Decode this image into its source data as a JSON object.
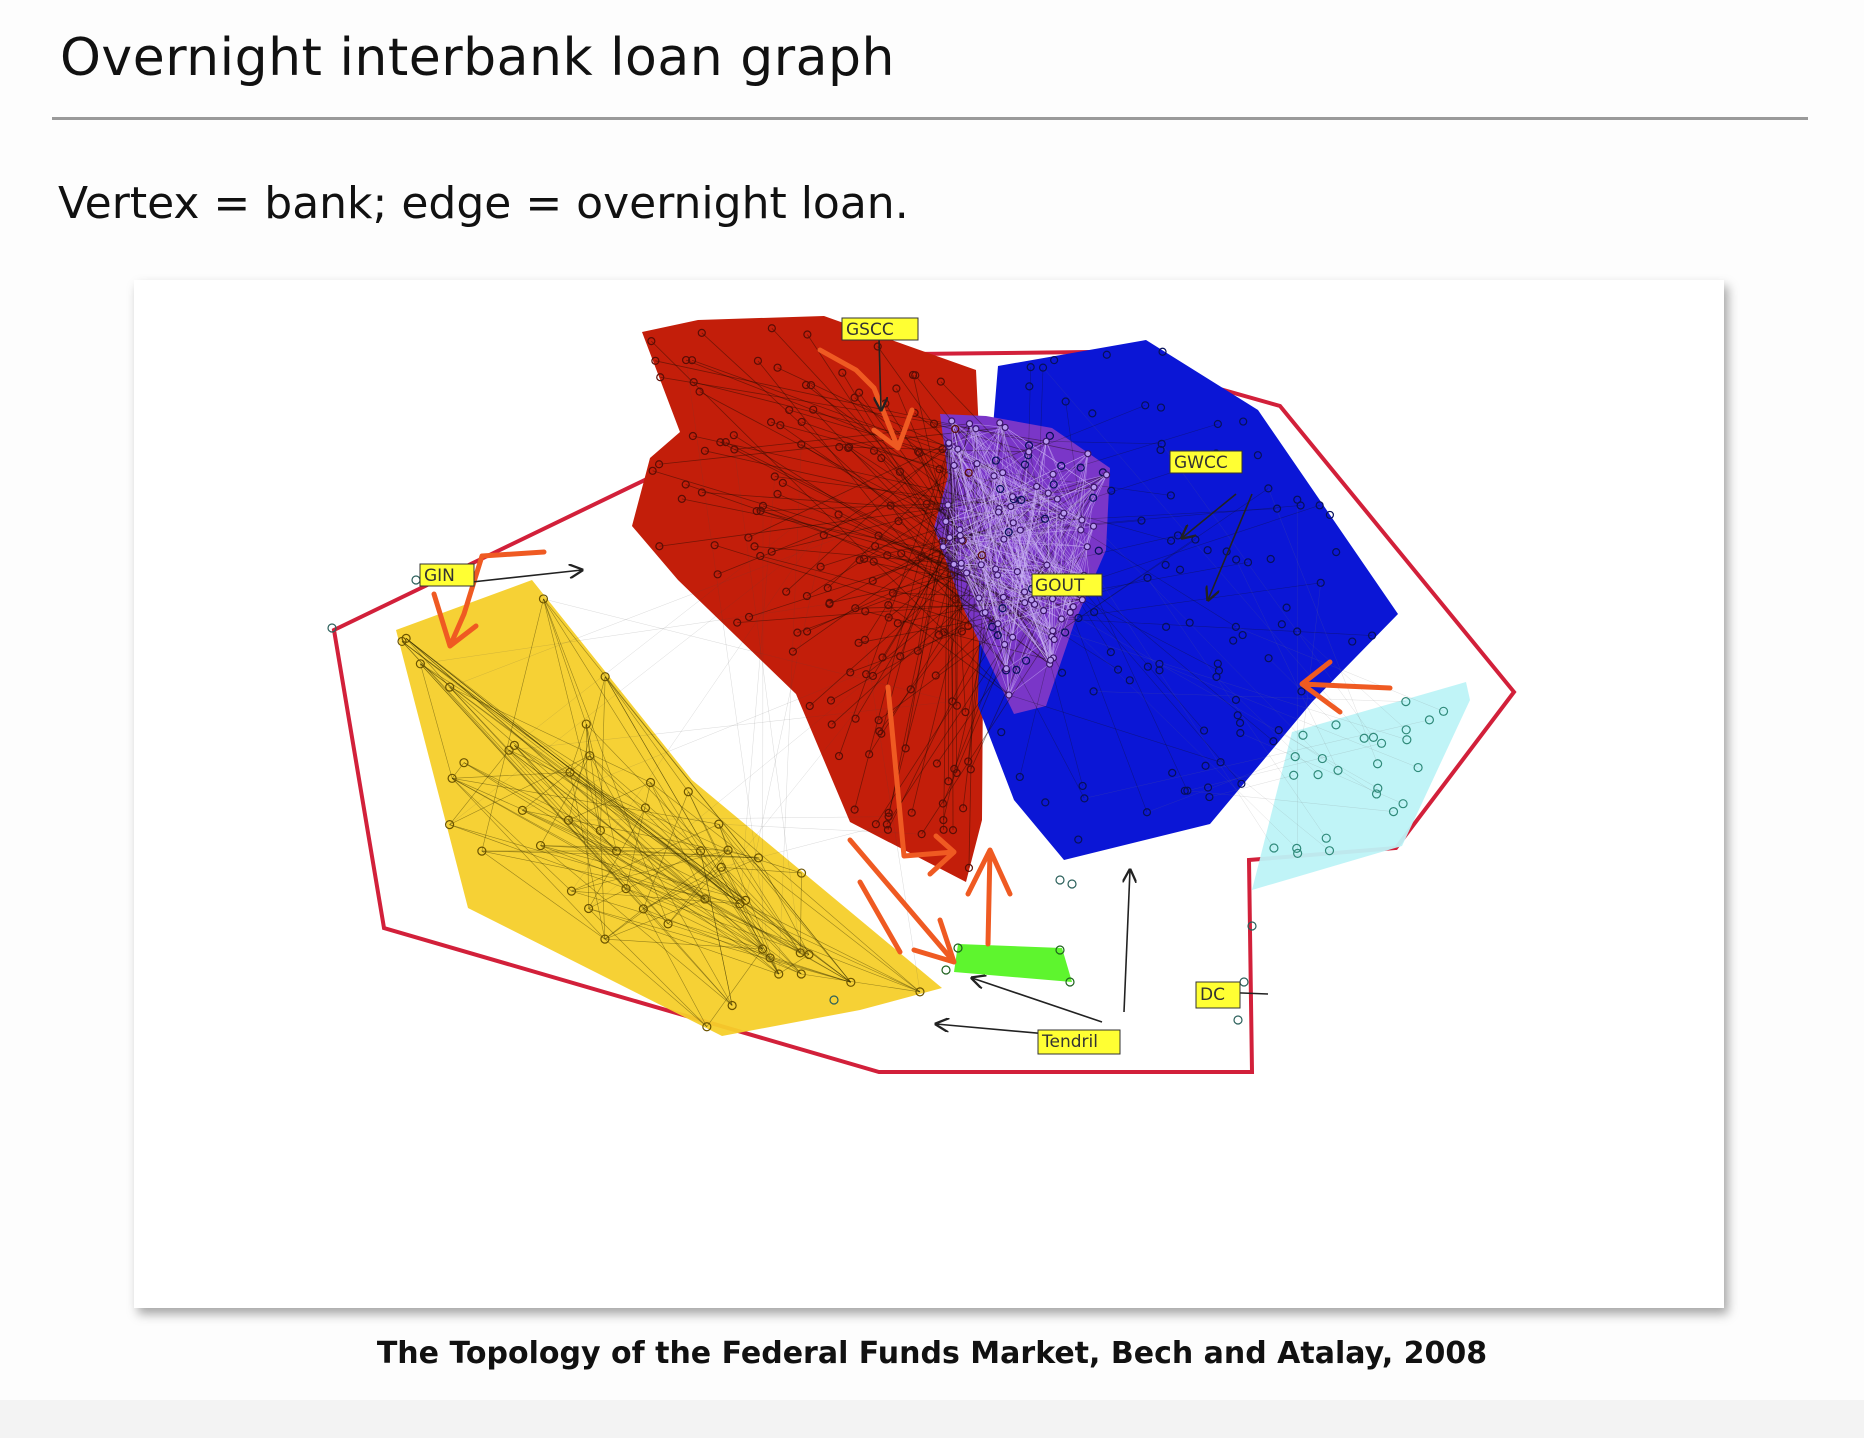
{
  "slide": {
    "title": "Overnight interbank loan graph",
    "subtitle": "Vertex = bank; edge = overnight loan.",
    "caption": "The Topology of the Federal Funds Market, Bech and Atalay, 2008"
  },
  "diagram": {
    "labels": {
      "gscc": "GSCC",
      "gwcc": "GWCC",
      "gin": "GIN",
      "gout": "GOUT",
      "dc": "DC",
      "tendril": "Tendril"
    },
    "colors": {
      "gin_region": "#c31e0a",
      "gscc_region": "#7a36c8",
      "gout_region": "#0b16d6",
      "tendril_yellow": "#f6cf2a",
      "tendril_cyan": "#bdf3f7",
      "tube_green": "#5ef52e",
      "gwcc_boundary": "#d2203a",
      "flow_arrow": "#ef5a22",
      "label_box": "#ffff33"
    }
  }
}
